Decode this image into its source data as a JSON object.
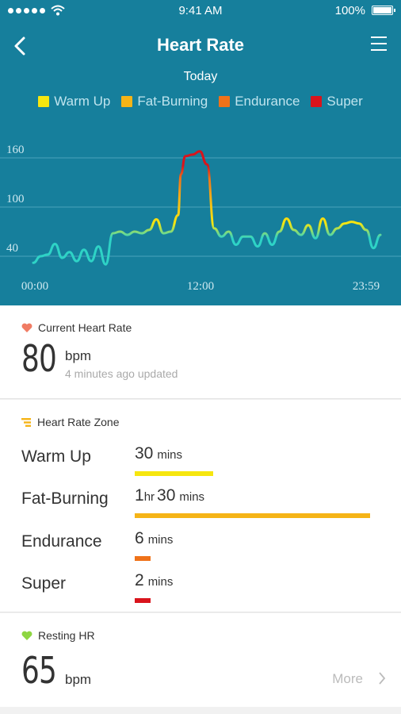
{
  "status_bar": {
    "time": "9:41 AM",
    "battery": "100%"
  },
  "nav": {
    "title": "Heart Rate",
    "subtitle": "Today"
  },
  "legend": [
    {
      "label": "Warm Up",
      "color": "#f6e60f"
    },
    {
      "label": "Fat-Burning",
      "color": "#f5b417"
    },
    {
      "label": "Endurance",
      "color": "#ef7219"
    },
    {
      "label": "Super",
      "color": "#d9141c"
    }
  ],
  "chart_data": {
    "type": "line",
    "series": [
      {
        "x": [
          0,
          0.5,
          1,
          1.5,
          2,
          2.5,
          3,
          3.5,
          4,
          4.5,
          5,
          5.5,
          6,
          6.5,
          7,
          7.5,
          8,
          8.5,
          9,
          9.5,
          10,
          10.2,
          10.5,
          11,
          11.5,
          12,
          12.5,
          13,
          13.5,
          14,
          14.5,
          15,
          15.5,
          16,
          16.5,
          17,
          17.5,
          18,
          18.5,
          19,
          19.5,
          20,
          20.5,
          21,
          21.5,
          22,
          22.5,
          23,
          23.5,
          23.98
        ],
        "y": [
          32,
          40,
          42,
          55,
          38,
          45,
          34,
          48,
          34,
          52,
          30,
          68,
          70,
          66,
          70,
          68,
          72,
          85,
          68,
          70,
          90,
          140,
          162,
          164,
          168,
          152,
          74,
          64,
          70,
          54,
          64,
          64,
          52,
          68,
          54,
          70,
          86,
          72,
          66,
          78,
          62,
          86,
          66,
          74,
          80,
          82,
          80,
          72,
          50,
          66
        ]
      }
    ],
    "x_ticks": [
      "00:00",
      "12:00",
      "23:59"
    ],
    "y_ticks": [
      "40",
      "100",
      "160"
    ],
    "ylim": [
      30,
      180
    ],
    "grid": true
  },
  "current": {
    "title": "Current Heart Rate",
    "value": "80",
    "unit": "bpm",
    "updated": "4 minutes ago updated"
  },
  "zone": {
    "title": "Heart Rate Zone",
    "rows": [
      {
        "name": "Warm Up",
        "num1": "30",
        "unit1": "mins",
        "num2": "",
        "unit2": "",
        "color": "#f6e60f",
        "minutes": 30
      },
      {
        "name": "Fat-Burning",
        "num1": "1",
        "unit1": "hr",
        "num2": "30",
        "unit2": "mins",
        "color": "#f5b417",
        "minutes": 90
      },
      {
        "name": "Endurance",
        "num1": "6",
        "unit1": "mins",
        "num2": "",
        "unit2": "",
        "color": "#ef7219",
        "minutes": 6
      },
      {
        "name": "Super",
        "num1": "2",
        "unit1": "mins",
        "num2": "",
        "unit2": "",
        "color": "#d9141c",
        "minutes": 2
      }
    ]
  },
  "resting": {
    "title": "Resting HR",
    "value": "65",
    "unit": "bpm",
    "more_label": "More"
  }
}
